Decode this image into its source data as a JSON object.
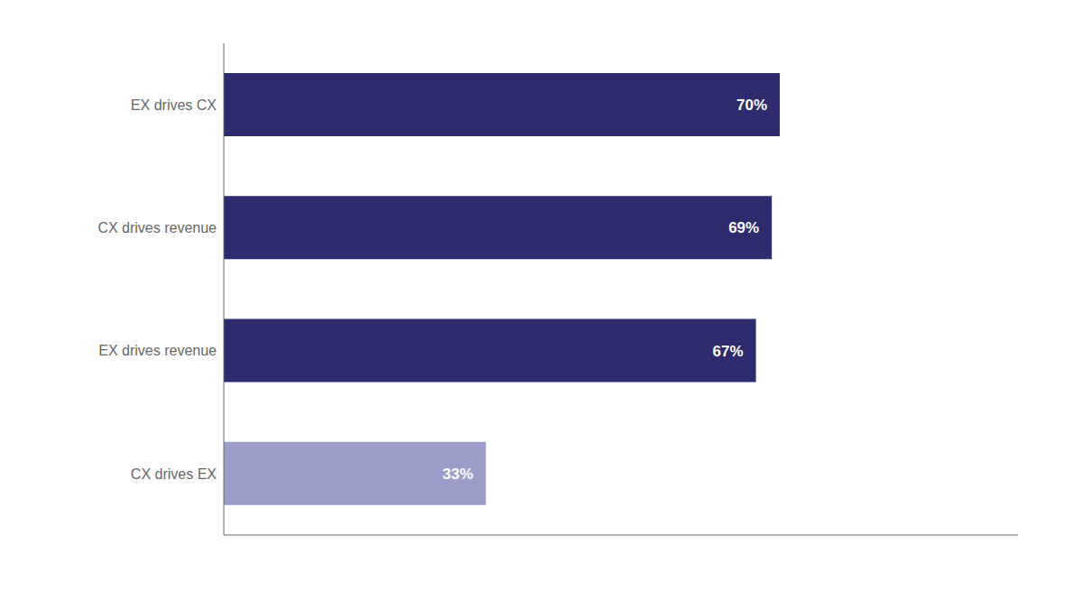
{
  "chart_data": {
    "type": "bar",
    "orientation": "horizontal",
    "categories": [
      "CX drives EX",
      "EX drives revenue",
      "CX drives revenue",
      "EX drives CX"
    ],
    "values": [
      33,
      67,
      69,
      70
    ],
    "value_labels": [
      "33%",
      "67%",
      "69%",
      "70%"
    ],
    "data_labels": true,
    "colors": [
      "#9b9dc8",
      "#2e2b6e",
      "#2e2b6e",
      "#2e2b6e"
    ],
    "xlim": [
      0,
      100
    ],
    "tick_labels": "y",
    "grid": false
  }
}
